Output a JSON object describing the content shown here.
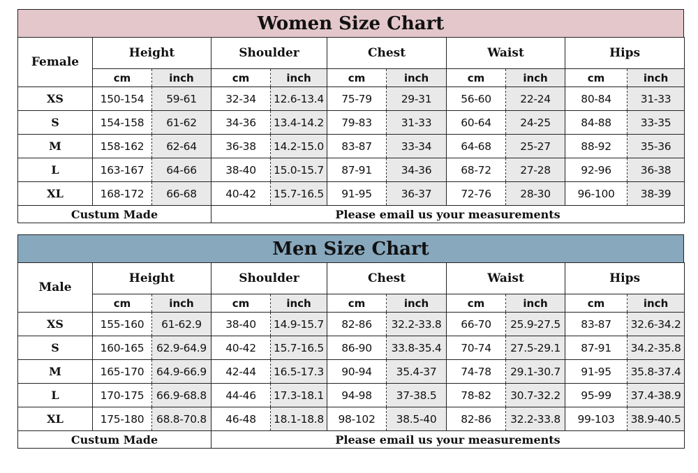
{
  "women": {
    "title": "Women Size Chart",
    "side_label": "Female",
    "groups": [
      "Height",
      "Shoulder",
      "Chest",
      "Waist",
      "Hips"
    ],
    "units": [
      "cm",
      "inch"
    ],
    "rows": [
      {
        "size": "XS",
        "values": [
          "150-154",
          "59-61",
          "32-34",
          "12.6-13.4",
          "75-79",
          "29-31",
          "56-60",
          "22-24",
          "80-84",
          "31-33"
        ]
      },
      {
        "size": "S",
        "values": [
          "154-158",
          "61-62",
          "34-36",
          "13.4-14.2",
          "79-83",
          "31-33",
          "60-64",
          "24-25",
          "84-88",
          "33-35"
        ]
      },
      {
        "size": "M",
        "values": [
          "158-162",
          "62-64",
          "36-38",
          "14.2-15.0",
          "83-87",
          "33-34",
          "64-68",
          "25-27",
          "88-92",
          "35-36"
        ]
      },
      {
        "size": "L",
        "values": [
          "163-167",
          "64-66",
          "38-40",
          "15.0-15.7",
          "87-91",
          "34-36",
          "68-72",
          "27-28",
          "92-96",
          "36-38"
        ]
      },
      {
        "size": "XL",
        "values": [
          "168-172",
          "66-68",
          "40-42",
          "15.7-16.5",
          "91-95",
          "36-37",
          "72-76",
          "28-30",
          "96-100",
          "38-39"
        ]
      }
    ],
    "footer_left": "Custum Made",
    "footer_right": "Please email us your measurements"
  },
  "men": {
    "title": "Men Size Chart",
    "side_label": "Male",
    "groups": [
      "Height",
      "Shoulder",
      "Chest",
      "Waist",
      "Hips"
    ],
    "units": [
      "cm",
      "inch"
    ],
    "rows": [
      {
        "size": "XS",
        "values": [
          "155-160",
          "61-62.9",
          "38-40",
          "14.9-15.7",
          "82-86",
          "32.2-33.8",
          "66-70",
          "25.9-27.5",
          "83-87",
          "32.6-34.2"
        ]
      },
      {
        "size": "S",
        "values": [
          "160-165",
          "62.9-64.9",
          "40-42",
          "15.7-16.5",
          "86-90",
          "33.8-35.4",
          "70-74",
          "27.5-29.1",
          "87-91",
          "34.2-35.8"
        ]
      },
      {
        "size": "M",
        "values": [
          "165-170",
          "64.9-66.9",
          "42-44",
          "16.5-17.3",
          "90-94",
          "35.4-37",
          "74-78",
          "29.1-30.7",
          "91-95",
          "35.8-37.4"
        ]
      },
      {
        "size": "L",
        "values": [
          "170-175",
          "66.9-68.8",
          "44-46",
          "17.3-18.1",
          "94-98",
          "37-38.5",
          "78-82",
          "30.7-32.2",
          "95-99",
          "37.4-38.9"
        ]
      },
      {
        "size": "XL",
        "values": [
          "175-180",
          "68.8-70.8",
          "46-48",
          "18.1-18.8",
          "98-102",
          "38.5-40",
          "82-86",
          "32.2-33.8",
          "99-103",
          "38.9-40.5"
        ]
      }
    ],
    "footer_left": "Custum Made",
    "footer_right": "Please email us your measurements"
  },
  "colors": {
    "women_header": "#e3c7cb",
    "men_header": "#88a8bd",
    "inch_shade": "#e9e9e9"
  }
}
